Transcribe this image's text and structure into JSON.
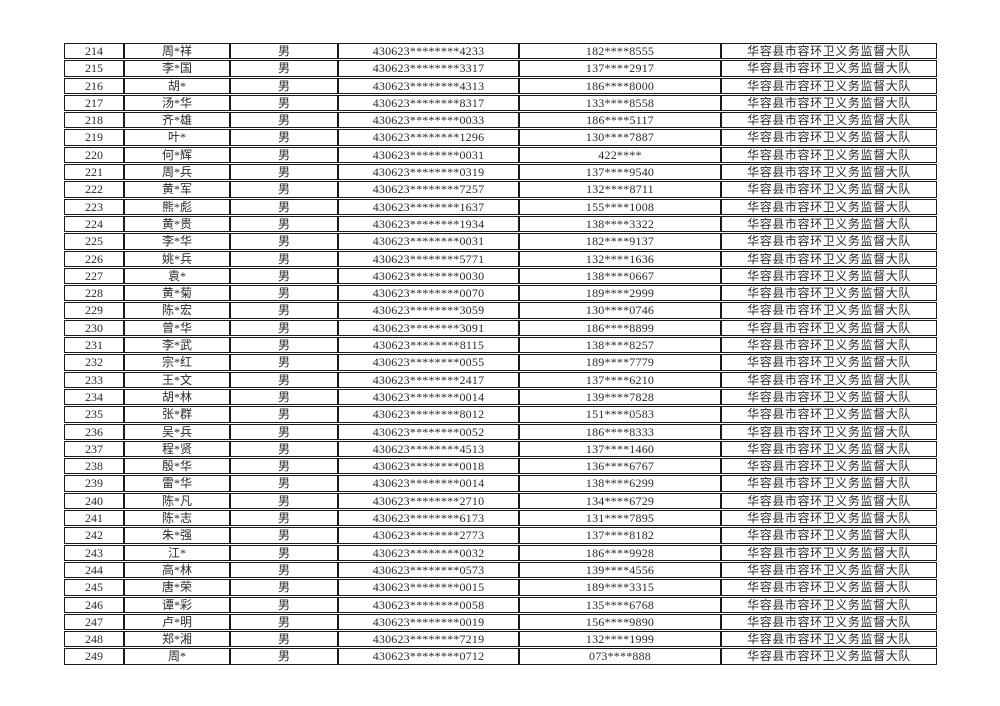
{
  "page": {
    "background_color": "#ffffff",
    "text_color": "#2a2a2a",
    "border_color": "#1b1b1b",
    "description": "masked personnel roster table page, rows 214-249, no header row visible"
  },
  "table": {
    "cell_names": [
      "row-number-cell",
      "name-cell",
      "gender-cell",
      "id-number-cell",
      "phone-cell",
      "organization-cell"
    ],
    "organization": "华容县市容环卫义务监督大队",
    "rows": [
      [
        "214",
        "周*祥",
        "男",
        "430623********4233",
        "182****8555",
        "华容县市容环卫义务监督大队"
      ],
      [
        "215",
        "李*国",
        "男",
        "430623********3317",
        "137****2917",
        "华容县市容环卫义务监督大队"
      ],
      [
        "216",
        "胡*",
        "男",
        "430623********4313",
        "186****8000",
        "华容县市容环卫义务监督大队"
      ],
      [
        "217",
        "汤*华",
        "男",
        "430623********8317",
        "133****8558",
        "华容县市容环卫义务监督大队"
      ],
      [
        "218",
        "齐*雄",
        "男",
        "430623********0033",
        "186****5117",
        "华容县市容环卫义务监督大队"
      ],
      [
        "219",
        "叶*",
        "男",
        "430623********1296",
        "130****7887",
        "华容县市容环卫义务监督大队"
      ],
      [
        "220",
        "何*辉",
        "男",
        "430623********0031",
        "422****",
        "华容县市容环卫义务监督大队"
      ],
      [
        "221",
        "周*兵",
        "男",
        "430623********0319",
        "137****9540",
        "华容县市容环卫义务监督大队"
      ],
      [
        "222",
        "黄*军",
        "男",
        "430623********7257",
        "132****8711",
        "华容县市容环卫义务监督大队"
      ],
      [
        "223",
        "熊*彪",
        "男",
        "430623********1637",
        "155****1008",
        "华容县市容环卫义务监督大队"
      ],
      [
        "224",
        "黄*贵",
        "男",
        "430623********1934",
        "138****3322",
        "华容县市容环卫义务监督大队"
      ],
      [
        "225",
        "李*华",
        "男",
        "430623********0031",
        "182****9137",
        "华容县市容环卫义务监督大队"
      ],
      [
        "226",
        "姚*兵",
        "男",
        "430623********5771",
        "132****1636",
        "华容县市容环卫义务监督大队"
      ],
      [
        "227",
        "袁*",
        "男",
        "430623********0030",
        "138****0667",
        "华容县市容环卫义务监督大队"
      ],
      [
        "228",
        "黄*菊",
        "男",
        "430623********0070",
        "189****2999",
        "华容县市容环卫义务监督大队"
      ],
      [
        "229",
        "陈*宏",
        "男",
        "430623********3059",
        "130****0746",
        "华容县市容环卫义务监督大队"
      ],
      [
        "230",
        "曾*华",
        "男",
        "430623********3091",
        "186****8899",
        "华容县市容环卫义务监督大队"
      ],
      [
        "231",
        "李*武",
        "男",
        "430623********8115",
        "138****8257",
        "华容县市容环卫义务监督大队"
      ],
      [
        "232",
        "宗*红",
        "男",
        "430623********0055",
        "189****7779",
        "华容县市容环卫义务监督大队"
      ],
      [
        "233",
        "王*文",
        "男",
        "430623********2417",
        "137****6210",
        "华容县市容环卫义务监督大队"
      ],
      [
        "234",
        "胡*林",
        "男",
        "430623********0014",
        "139****7828",
        "华容县市容环卫义务监督大队"
      ],
      [
        "235",
        "张*群",
        "男",
        "430623********8012",
        "151****0583",
        "华容县市容环卫义务监督大队"
      ],
      [
        "236",
        "吴*兵",
        "男",
        "430623********0052",
        "186****8333",
        "华容县市容环卫义务监督大队"
      ],
      [
        "237",
        "程*贤",
        "男",
        "430623********4513",
        "137****1460",
        "华容县市容环卫义务监督大队"
      ],
      [
        "238",
        "殷*华",
        "男",
        "430623********0018",
        "136****6767",
        "华容县市容环卫义务监督大队"
      ],
      [
        "239",
        "雷*华",
        "男",
        "430623********0014",
        "138****6299",
        "华容县市容环卫义务监督大队"
      ],
      [
        "240",
        "陈*凡",
        "男",
        "430623********2710",
        "134****6729",
        "华容县市容环卫义务监督大队"
      ],
      [
        "241",
        "陈*志",
        "男",
        "430623********6173",
        "131****7895",
        "华容县市容环卫义务监督大队"
      ],
      [
        "242",
        "朱*强",
        "男",
        "430623********2773",
        "137****8182",
        "华容县市容环卫义务监督大队"
      ],
      [
        "243",
        "江*",
        "男",
        "430623********0032",
        "186****9928",
        "华容县市容环卫义务监督大队"
      ],
      [
        "244",
        "高*林",
        "男",
        "430623********0573",
        "139****4556",
        "华容县市容环卫义务监督大队"
      ],
      [
        "245",
        "唐*荣",
        "男",
        "430623********0015",
        "189****3315",
        "华容县市容环卫义务监督大队"
      ],
      [
        "246",
        "谭*彩",
        "男",
        "430623********0058",
        "135****6768",
        "华容县市容环卫义务监督大队"
      ],
      [
        "247",
        "卢*明",
        "男",
        "430623********0019",
        "156****9890",
        "华容县市容环卫义务监督大队"
      ],
      [
        "248",
        "郑*湘",
        "男",
        "430623********7219",
        "132****1999",
        "华容县市容环卫义务监督大队"
      ],
      [
        "249",
        "周*",
        "男",
        "430623********0712",
        "073****888",
        "华容县市容环卫义务监督大队"
      ]
    ]
  }
}
